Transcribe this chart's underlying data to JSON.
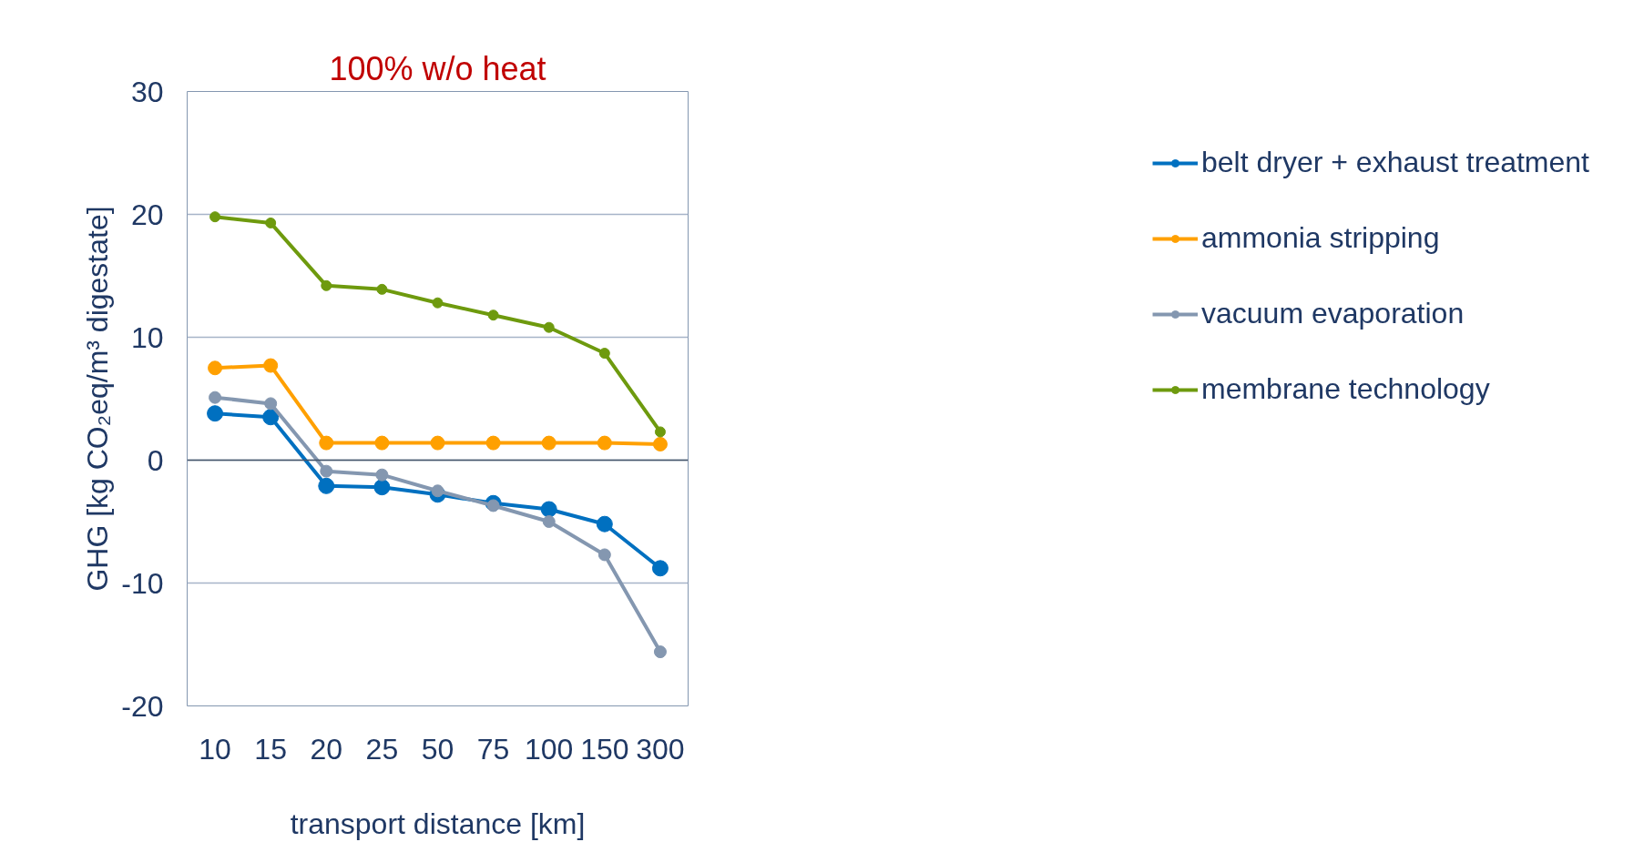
{
  "chart_data": {
    "type": "line",
    "title": "100% w/o heat",
    "xlabel": "transport distance [km]",
    "ylabel": "GHG [kg CO₂eq/m³ digestate]",
    "categories": [
      "10",
      "15",
      "20",
      "25",
      "50",
      "75",
      "100",
      "150",
      "300"
    ],
    "series": [
      {
        "name": "belt dryer + exhaust treatment",
        "color": "#0070c0",
        "values": [
          3.8,
          3.5,
          -2.1,
          -2.2,
          -2.8,
          -3.5,
          -4.0,
          -5.2,
          -8.8
        ]
      },
      {
        "name": "ammonia stripping",
        "color": "#ffa000",
        "values": [
          7.5,
          7.7,
          1.4,
          1.4,
          1.4,
          1.4,
          1.4,
          1.4,
          1.3
        ]
      },
      {
        "name": "vacuum evaporation",
        "color": "#8497b0",
        "values": [
          5.1,
          4.6,
          -0.9,
          -1.2,
          -2.5,
          -3.7,
          -5.0,
          -7.7,
          -15.6
        ]
      },
      {
        "name": "membrane technology",
        "color": "#6e9a0e",
        "values": [
          19.8,
          19.3,
          14.2,
          13.9,
          12.8,
          11.8,
          10.8,
          8.7,
          2.3
        ]
      }
    ],
    "ylim": [
      -20,
      30
    ],
    "yticks": [
      -20,
      -10,
      0,
      10,
      20,
      30
    ],
    "ref_lines": [
      {
        "axis": "y",
        "value": 0,
        "color": "#44546a"
      }
    ],
    "grid": "y",
    "legend": "right",
    "marker": "circle",
    "line_style": "solid"
  }
}
